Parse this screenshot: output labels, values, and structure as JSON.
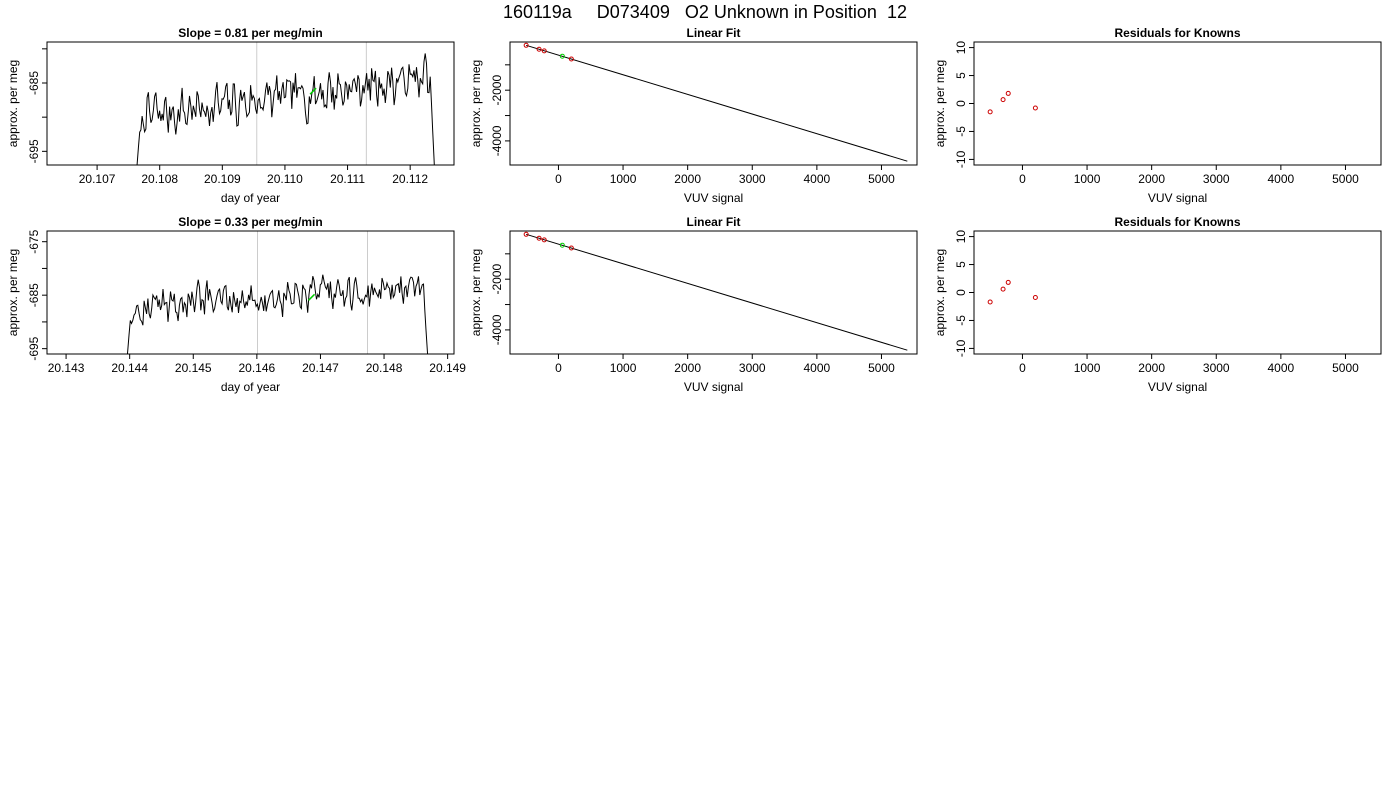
{
  "figure_title": "160119a     D073409   O2 Unknown in Position  12",
  "colors": {
    "line": "#000000",
    "known_point": "#cc0000",
    "unknown_point": "#00cc00",
    "vline": "#cccccc",
    "axes": "#000000"
  },
  "chart_data": [
    {
      "type": "line",
      "title": "Slope =  0.81  per meg/min",
      "xlabel": "day of year",
      "ylabel": "approx. per meg",
      "xlim": [
        20.1062,
        20.1127
      ],
      "ylim": [
        -697,
        -679
      ],
      "x_ticks": [
        20.107,
        20.108,
        20.109,
        20.11,
        20.111,
        20.112
      ],
      "x_tick_labels": [
        "20.107",
        "20.108",
        "20.109",
        "20.110",
        "20.111",
        "20.112"
      ],
      "y_ticks": [
        -695,
        -690,
        -685,
        -680
      ],
      "y_tick_labels": [
        "-695",
        "",
        "-685",
        ""
      ],
      "vlines": [
        20.10955,
        20.1113
      ],
      "trace_start": 20.10762,
      "trace_end": 20.1124,
      "trace_level_start": -690,
      "trace_level_end": -684,
      "unknown_point": {
        "x": 20.11045,
        "y": -686.2
      }
    },
    {
      "type": "line",
      "title": "Linear Fit",
      "xlabel": "VUV signal",
      "ylabel": "approx. per meg",
      "xlim": [
        -750,
        5550
      ],
      "ylim": [
        -4950,
        -100
      ],
      "x_ticks": [
        0,
        1000,
        2000,
        3000,
        4000,
        5000
      ],
      "x_tick_labels": [
        "0",
        "1000",
        "2000",
        "3000",
        "4000",
        "5000"
      ],
      "y_ticks": [
        -4000,
        -3000,
        -2000,
        -1000
      ],
      "y_tick_labels": [
        "-4000",
        "",
        "-2000",
        ""
      ],
      "fit_line": {
        "x": [
          -500,
          5400
        ],
        "y": [
          -230,
          -4800
        ]
      },
      "knowns": {
        "x": [
          -500,
          -300,
          -220,
          200
        ],
        "y": [
          -230,
          -385,
          -450,
          -770
        ]
      },
      "unknown": {
        "x": 60,
        "y": -660
      }
    },
    {
      "type": "scatter",
      "title": "Residuals for Knowns",
      "xlabel": "VUV signal",
      "ylabel": "approx. per meg",
      "xlim": [
        -750,
        5550
      ],
      "ylim": [
        -11,
        11
      ],
      "x_ticks": [
        0,
        1000,
        2000,
        3000,
        4000,
        5000
      ],
      "x_tick_labels": [
        "0",
        "1000",
        "2000",
        "3000",
        "4000",
        "5000"
      ],
      "y_ticks": [
        -10,
        -5,
        0,
        5,
        10
      ],
      "y_tick_labels": [
        "-10",
        "-5",
        "0",
        "5",
        "10"
      ],
      "knowns": {
        "x": [
          -500,
          -300,
          -220,
          200
        ],
        "y": [
          -1.5,
          0.7,
          1.8,
          -0.8
        ]
      }
    },
    {
      "type": "line",
      "title": "Slope =  0.33  per meg/min",
      "xlabel": "day of year",
      "ylabel": "approx. per meg",
      "xlim": [
        20.1427,
        20.1491
      ],
      "ylim": [
        -696,
        -673
      ],
      "x_ticks": [
        20.143,
        20.144,
        20.145,
        20.146,
        20.147,
        20.148,
        20.149
      ],
      "x_tick_labels": [
        "20.143",
        "20.144",
        "20.145",
        "20.146",
        "20.147",
        "20.148",
        "20.149"
      ],
      "y_ticks": [
        -695,
        -690,
        -685,
        -680,
        -675
      ],
      "y_tick_labels": [
        "-695",
        "",
        "-685",
        "",
        "-675"
      ],
      "vlines": [
        20.14601,
        20.14774
      ],
      "trace_start": 20.14395,
      "trace_end": 20.1487,
      "trace_level_start": -687,
      "trace_level_end": -684,
      "unknown_point": {
        "x": 20.14686,
        "y": -685.4
      }
    },
    {
      "type": "line",
      "title": "Linear Fit",
      "xlabel": "VUV signal",
      "ylabel": "approx. per meg",
      "xlim": [
        -750,
        5550
      ],
      "ylim": [
        -4950,
        -100
      ],
      "x_ticks": [
        0,
        1000,
        2000,
        3000,
        4000,
        5000
      ],
      "x_tick_labels": [
        "0",
        "1000",
        "2000",
        "3000",
        "4000",
        "5000"
      ],
      "y_ticks": [
        -4000,
        -3000,
        -2000,
        -1000
      ],
      "y_tick_labels": [
        "-4000",
        "",
        "-2000",
        ""
      ],
      "fit_line": {
        "x": [
          -500,
          5400
        ],
        "y": [
          -230,
          -4800
        ]
      },
      "knowns": {
        "x": [
          -500,
          -300,
          -220,
          200
        ],
        "y": [
          -230,
          -385,
          -450,
          -770
        ]
      },
      "unknown": {
        "x": 60,
        "y": -660
      }
    },
    {
      "type": "scatter",
      "title": "Residuals for Knowns",
      "xlabel": "VUV signal",
      "ylabel": "approx. per meg",
      "xlim": [
        -750,
        5550
      ],
      "ylim": [
        -11,
        11
      ],
      "x_ticks": [
        0,
        1000,
        2000,
        3000,
        4000,
        5000
      ],
      "x_tick_labels": [
        "0",
        "1000",
        "2000",
        "3000",
        "4000",
        "5000"
      ],
      "y_ticks": [
        -10,
        -5,
        0,
        5,
        10
      ],
      "y_tick_labels": [
        "-10",
        "-5",
        "0",
        "5",
        "10"
      ],
      "knowns": {
        "x": [
          -500,
          -300,
          -220,
          200
        ],
        "y": [
          -1.7,
          0.6,
          1.8,
          -0.9
        ]
      }
    }
  ]
}
